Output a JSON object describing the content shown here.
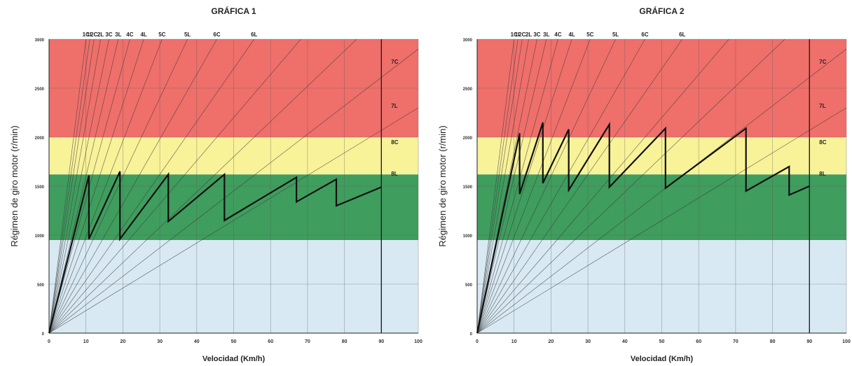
{
  "chart_data": [
    {
      "type": "line",
      "title": "GRÁFICA 1",
      "xlabel": "Velocidad (Km/h)",
      "ylabel": "Régimen de giro motor (r/min)",
      "xlim": [
        0,
        100
      ],
      "ylim": [
        0,
        3000
      ],
      "x_ticks": [
        "0",
        "10",
        "20",
        "30",
        "40",
        "50",
        "60",
        "70",
        "80",
        "90",
        "100"
      ],
      "y_ticks": [
        "0",
        "500",
        "1000",
        "1500",
        "2000",
        "2500",
        "3000"
      ],
      "grid": true,
      "bands": [
        {
          "name": "zona-azul",
          "from": 0,
          "to": 950,
          "color": "#d9e9f3"
        },
        {
          "name": "zona-verde",
          "from": 950,
          "to": 1620,
          "color": "#3f9d5e"
        },
        {
          "name": "zona-amarilla",
          "from": 1620,
          "to": 2000,
          "color": "#f8f299"
        },
        {
          "name": "zona-roja",
          "from": 2000,
          "to": 3000,
          "color": "#ef6f6b"
        }
      ],
      "max_speed_line_x": 90,
      "gear_ratios": [
        {
          "label": "1C",
          "rpm_per_kmh": 300
        },
        {
          "label": "1L",
          "rpm_per_kmh": 272
        },
        {
          "label": "2C",
          "rpm_per_kmh": 246
        },
        {
          "label": "2L",
          "rpm_per_kmh": 215
        },
        {
          "label": "3C",
          "rpm_per_kmh": 185
        },
        {
          "label": "3L",
          "rpm_per_kmh": 160
        },
        {
          "label": "4C",
          "rpm_per_kmh": 137
        },
        {
          "label": "4L",
          "rpm_per_kmh": 117
        },
        {
          "label": "5C",
          "rpm_per_kmh": 98
        },
        {
          "label": "5L",
          "rpm_per_kmh": 80
        },
        {
          "label": "6C",
          "rpm_per_kmh": 66
        },
        {
          "label": "6L",
          "rpm_per_kmh": 54
        },
        {
          "label": "7C",
          "rpm_per_kmh": 44
        },
        {
          "label": "7L",
          "rpm_per_kmh": 36
        },
        {
          "label": "8C",
          "rpm_per_kmh": 29
        },
        {
          "label": "8L",
          "rpm_per_kmh": 23
        }
      ],
      "top_gear_labels": [
        "1C",
        "1L",
        "2C",
        "2L",
        "3C",
        "3L",
        "4C",
        "4L",
        "5C",
        "5L",
        "6C",
        "6L"
      ],
      "right_gear_labels": [
        {
          "label": "7C",
          "y": 2770
        },
        {
          "label": "7L",
          "y": 2320
        },
        {
          "label": "8C",
          "y": 1950
        },
        {
          "label": "8L",
          "y": 1630
        }
      ],
      "series": [
        {
          "x": [
            0,
            10.8,
            10.8,
            19.2,
            19.2,
            32.3,
            32.3,
            47.5,
            47.5,
            67,
            67,
            77.8,
            77.8,
            90
          ],
          "y": [
            0,
            1610,
            960,
            1650,
            960,
            1620,
            1140,
            1620,
            1150,
            1590,
            1340,
            1570,
            1300,
            1490
          ]
        }
      ]
    },
    {
      "type": "line",
      "title": "GRÁFICA 2",
      "xlabel": "Velocidad (Km/h)",
      "ylabel": "Régimen de giro motor (r/min)",
      "xlim": [
        0,
        100
      ],
      "ylim": [
        0,
        3000
      ],
      "x_ticks": [
        "0",
        "10",
        "20",
        "30",
        "40",
        "50",
        "60",
        "70",
        "80",
        "90",
        "100"
      ],
      "y_ticks": [
        "0",
        "500",
        "1000",
        "1500",
        "2000",
        "2500",
        "3000"
      ],
      "grid": true,
      "bands": [
        {
          "name": "zona-azul",
          "from": 0,
          "to": 950,
          "color": "#d9e9f3"
        },
        {
          "name": "zona-verde",
          "from": 950,
          "to": 1620,
          "color": "#3f9d5e"
        },
        {
          "name": "zona-amarilla",
          "from": 1620,
          "to": 2000,
          "color": "#f8f299"
        },
        {
          "name": "zona-roja",
          "from": 2000,
          "to": 3000,
          "color": "#ef6f6b"
        }
      ],
      "max_speed_line_x": 90,
      "gear_ratios": [
        {
          "label": "1C",
          "rpm_per_kmh": 300
        },
        {
          "label": "1L",
          "rpm_per_kmh": 272
        },
        {
          "label": "2C",
          "rpm_per_kmh": 246
        },
        {
          "label": "2L",
          "rpm_per_kmh": 215
        },
        {
          "label": "3C",
          "rpm_per_kmh": 185
        },
        {
          "label": "3L",
          "rpm_per_kmh": 160
        },
        {
          "label": "4C",
          "rpm_per_kmh": 137
        },
        {
          "label": "4L",
          "rpm_per_kmh": 117
        },
        {
          "label": "5C",
          "rpm_per_kmh": 98
        },
        {
          "label": "5L",
          "rpm_per_kmh": 80
        },
        {
          "label": "6C",
          "rpm_per_kmh": 66
        },
        {
          "label": "6L",
          "rpm_per_kmh": 54
        },
        {
          "label": "7C",
          "rpm_per_kmh": 44
        },
        {
          "label": "7L",
          "rpm_per_kmh": 36
        },
        {
          "label": "8C",
          "rpm_per_kmh": 29
        },
        {
          "label": "8L",
          "rpm_per_kmh": 23
        }
      ],
      "top_gear_labels": [
        "1C",
        "1L",
        "2C",
        "2L",
        "3C",
        "3L",
        "4C",
        "4L",
        "5C",
        "5L",
        "6C",
        "6L"
      ],
      "right_gear_labels": [
        {
          "label": "7C",
          "y": 2770
        },
        {
          "label": "7L",
          "y": 2320
        },
        {
          "label": "8C",
          "y": 1950
        },
        {
          "label": "8L",
          "y": 1630
        }
      ],
      "series": [
        {
          "x": [
            0,
            11.5,
            11.5,
            17.8,
            17.8,
            24.8,
            24.8,
            35.8,
            35.8,
            51,
            51,
            72.8,
            72.8,
            84.5,
            84.5,
            90
          ],
          "y": [
            0,
            2040,
            1420,
            2150,
            1530,
            2080,
            1460,
            2130,
            1490,
            2090,
            1480,
            2090,
            1450,
            1700,
            1410,
            1500
          ]
        }
      ]
    }
  ]
}
